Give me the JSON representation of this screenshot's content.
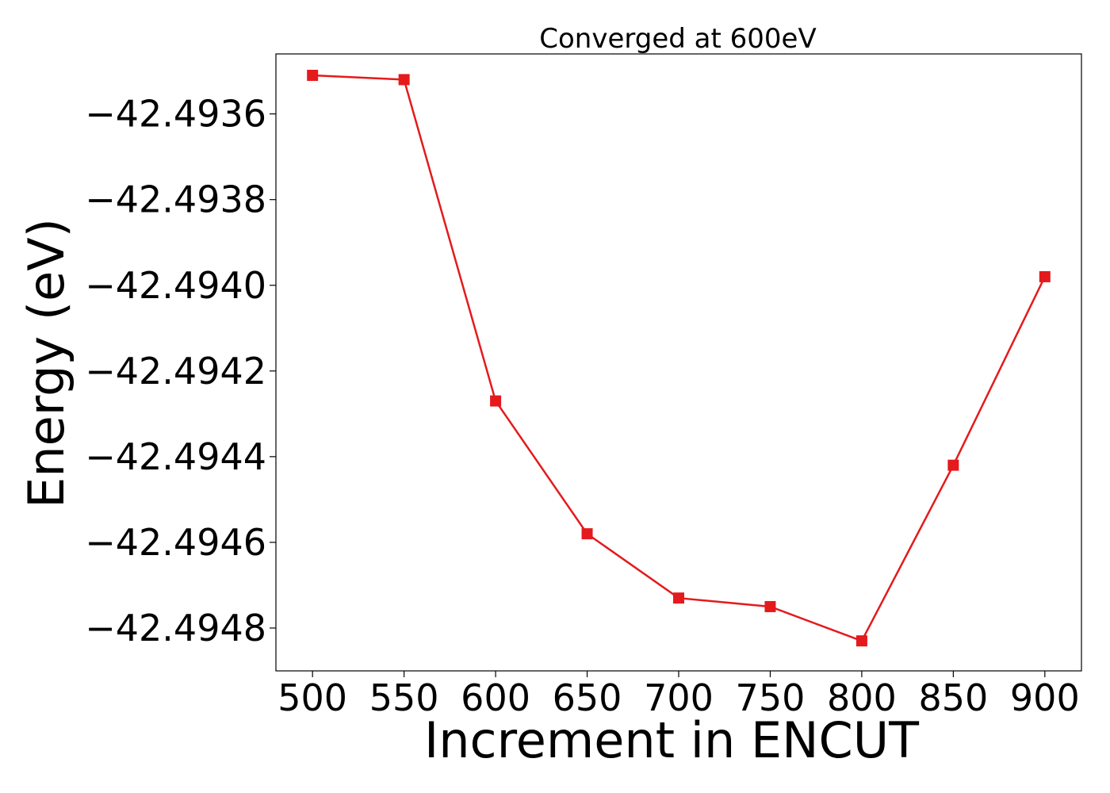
{
  "chart_data": {
    "type": "line",
    "title": "Converged at 600eV",
    "xlabel": "Increment in ENCUT",
    "ylabel": "Energy (eV)",
    "x": [
      500,
      550,
      600,
      650,
      700,
      750,
      800,
      850,
      900
    ],
    "series": [
      {
        "values": [
          -42.49351,
          -42.49352,
          -42.49427,
          -42.49458,
          -42.49473,
          -42.49475,
          -42.49483,
          -42.49442,
          -42.49398
        ],
        "color": "#e41a1c",
        "marker": "square"
      }
    ],
    "xlim": [
      480,
      920
    ],
    "ylim": [
      -42.4949,
      -42.49346
    ],
    "xticks": [
      500,
      550,
      600,
      650,
      700,
      750,
      800,
      850,
      900
    ],
    "xtick_labels": [
      "500",
      "550",
      "600",
      "650",
      "700",
      "750",
      "800",
      "850",
      "900"
    ],
    "yticks": [
      -42.4936,
      -42.4938,
      -42.494,
      -42.4942,
      -42.4944,
      -42.4946,
      -42.4948
    ],
    "ytick_labels": [
      "−42.4936",
      "−42.4938",
      "−42.4940",
      "−42.4942",
      "−42.4944",
      "−42.4946",
      "−42.4948"
    ],
    "grid": false,
    "legend": "none"
  }
}
